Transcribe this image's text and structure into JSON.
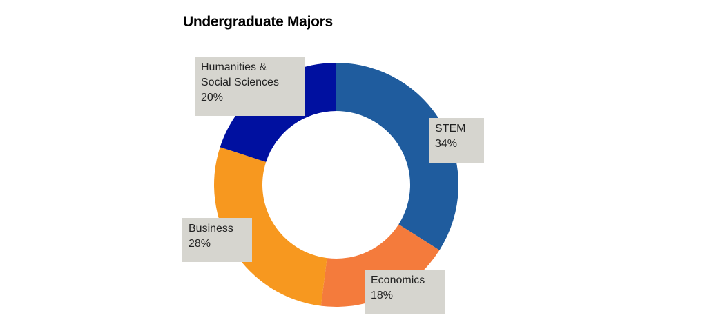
{
  "chart_data": {
    "type": "pie",
    "title": "Undergraduate Majors",
    "categories": [
      "STEM",
      "Economics",
      "Business",
      "Humanities & Social Sciences"
    ],
    "values": [
      34,
      18,
      28,
      20
    ],
    "value_labels": [
      "34%",
      "18%",
      "28%",
      "20%"
    ],
    "colors": [
      "#1f5c9e",
      "#f47b3c",
      "#f7981f",
      "#0010a0"
    ],
    "donut": true
  }
}
